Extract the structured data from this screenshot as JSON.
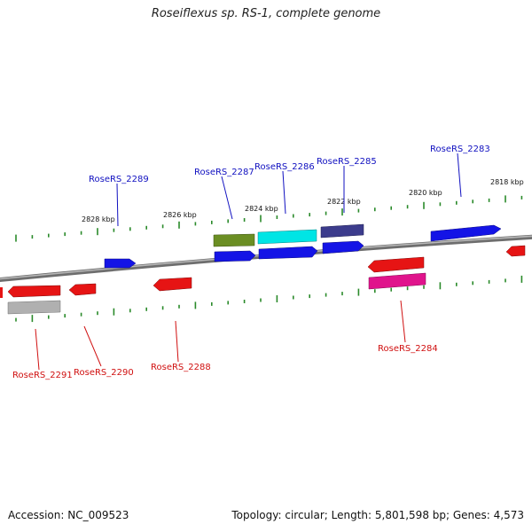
{
  "title": "Roseiflexus sp. RS-1, complete genome",
  "footer": {
    "accession": "Accession: NC_009523",
    "summary": "Topology: circular; Length: 5,801,598 bp; Genes: 4,573"
  },
  "colors": {
    "backbone": "#7a7a7a",
    "tick": "#2a8a2a",
    "label_top": "#1010c0",
    "label_bottom": "#d01010"
  },
  "kbp_labels": [
    "2828 kbp",
    "2826 kbp",
    "2824 kbp",
    "2822 kbp",
    "2820 kbp",
    "2818 kbp"
  ],
  "gene_labels_top": [
    "RoseRS_2289",
    "RoseRS_2287",
    "RoseRS_2286",
    "RoseRS_2285",
    "RoseRS_2283"
  ],
  "gene_labels_bottom": [
    "RoseRS_2291",
    "RoseRS_2290",
    "RoseRS_2288",
    "RoseRS_2284"
  ],
  "features": [
    {
      "id": "2289",
      "color": "#1414e6",
      "strand": "+"
    },
    {
      "id": "2287a",
      "color": "#6b8e23",
      "strand": "+"
    },
    {
      "id": "2287b",
      "color": "#1414e6",
      "strand": "+"
    },
    {
      "id": "2286a",
      "color": "#00e5e5",
      "strand": "+"
    },
    {
      "id": "2286b",
      "color": "#1414e6",
      "strand": "+"
    },
    {
      "id": "2285a",
      "color": "#3c3c8c",
      "strand": "+"
    },
    {
      "id": "2285b",
      "color": "#1414e6",
      "strand": "+"
    },
    {
      "id": "2283",
      "color": "#1414e6",
      "strand": "+"
    },
    {
      "id": "2291a",
      "color": "#e61414",
      "strand": "-"
    },
    {
      "id": "2291b",
      "color": "#b0b0b0",
      "strand": "-"
    },
    {
      "id": "2290",
      "color": "#e61414",
      "strand": "-"
    },
    {
      "id": "2288",
      "color": "#e61414",
      "strand": "-"
    },
    {
      "id": "2284a",
      "color": "#e61414",
      "strand": "-"
    },
    {
      "id": "2284b",
      "color": "#e0148c",
      "strand": "-"
    },
    {
      "id": "2282",
      "color": "#e61414",
      "strand": "-"
    },
    {
      "id": "edge",
      "color": "#e61414",
      "strand": "-"
    }
  ]
}
